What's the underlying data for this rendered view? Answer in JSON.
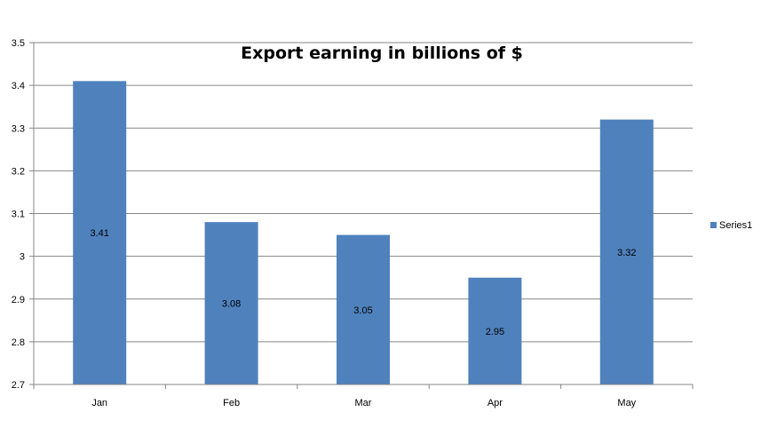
{
  "chart_data": {
    "type": "bar",
    "title": "Export earning in billions of $",
    "categories": [
      "Jan",
      "Feb",
      "Mar",
      "Apr",
      "May"
    ],
    "series": [
      {
        "name": "Series1",
        "values": [
          3.41,
          3.08,
          3.05,
          2.95,
          3.32
        ],
        "data_labels": [
          "3.41",
          "3.08",
          "3.05",
          "2.95",
          "3.32"
        ],
        "color": "#4F81BD"
      }
    ],
    "y_ticks": [
      "2.7",
      "2.8",
      "2.9",
      "3",
      "3.1",
      "3.2",
      "3.3",
      "3.4",
      "3.5"
    ],
    "ylim": [
      2.7,
      3.5
    ],
    "grid": true,
    "legend_position": "right",
    "colors": {
      "gridline": "#868686",
      "axis": "#868686",
      "bar": "#4F81BD"
    }
  }
}
